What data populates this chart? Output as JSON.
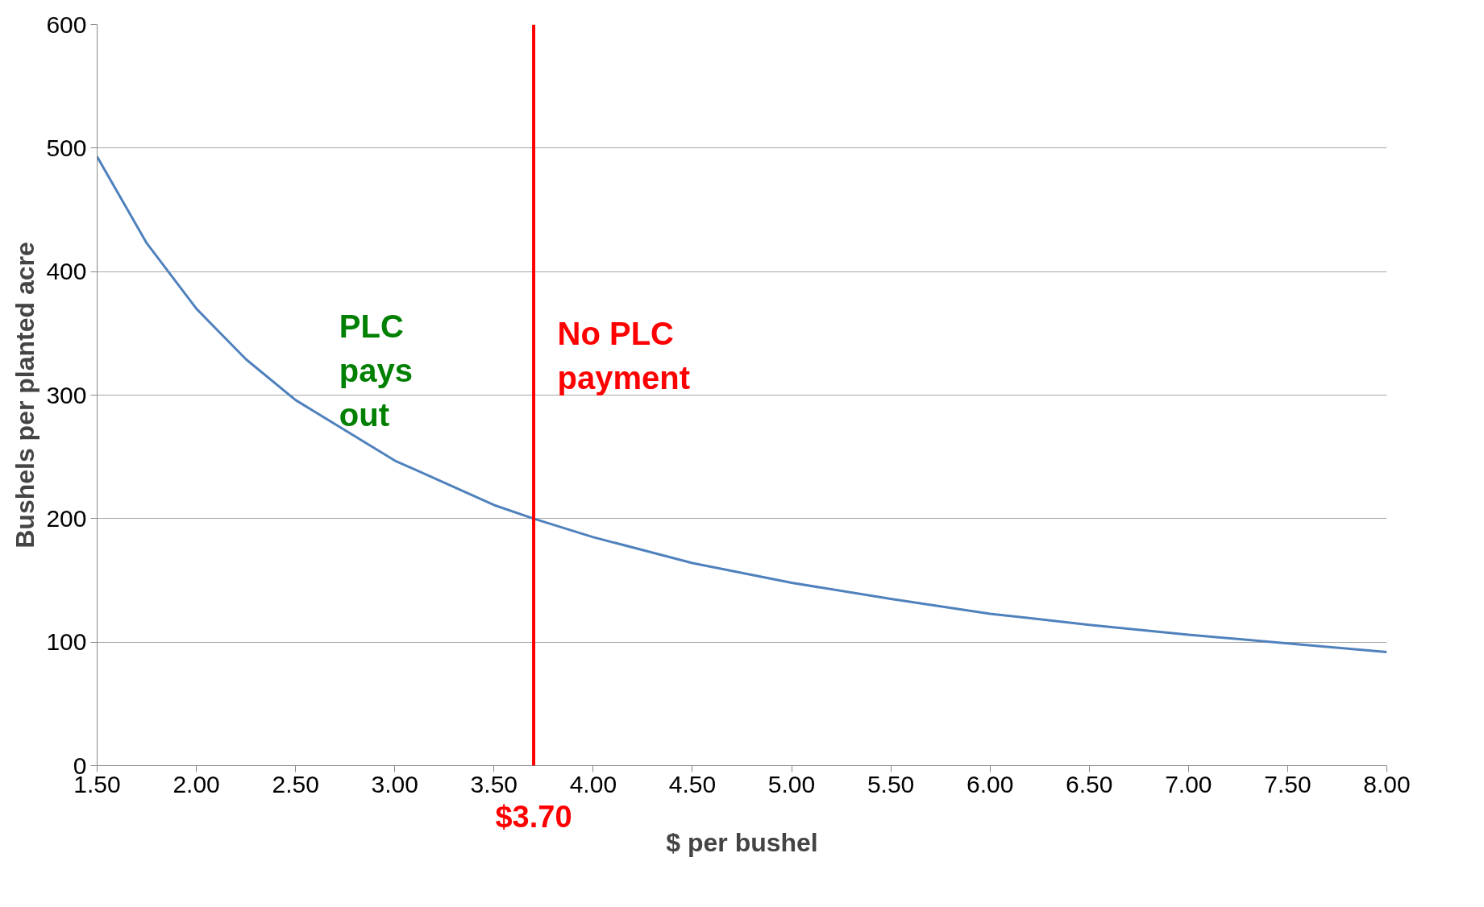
{
  "chart_data": {
    "type": "line",
    "xlabel": "$ per bushel",
    "ylabel": "Bushels per planted acre",
    "x": [
      1.5,
      1.75,
      2.0,
      2.25,
      2.5,
      3.0,
      3.5,
      3.7,
      4.0,
      4.5,
      5.0,
      5.5,
      6.0,
      6.5,
      7.0,
      7.5,
      8.0
    ],
    "series": [
      {
        "color": "#4f81bd",
        "values": [
          493,
          423,
          370,
          329,
          296,
          247,
          211,
          200,
          185,
          164,
          148,
          135,
          123,
          114,
          106,
          99,
          92
        ]
      }
    ],
    "xlim": [
      1.5,
      8.0
    ],
    "ylim": [
      0,
      600
    ],
    "xticks": [
      {
        "value": 1.5,
        "label": "1.50"
      },
      {
        "value": 2.0,
        "label": "2.00"
      },
      {
        "value": 2.5,
        "label": "2.50"
      },
      {
        "value": 3.0,
        "label": "3.00"
      },
      {
        "value": 3.5,
        "label": "3.50"
      },
      {
        "value": 4.0,
        "label": "4.00"
      },
      {
        "value": 4.5,
        "label": "4.50"
      },
      {
        "value": 5.0,
        "label": "5.00"
      },
      {
        "value": 5.5,
        "label": "5.50"
      },
      {
        "value": 6.0,
        "label": "6.00"
      },
      {
        "value": 6.5,
        "label": "6.50"
      },
      {
        "value": 7.0,
        "label": "7.00"
      },
      {
        "value": 7.5,
        "label": "7.50"
      },
      {
        "value": 8.0,
        "label": "8.00"
      }
    ],
    "yticks": [
      0,
      100,
      200,
      300,
      400,
      500,
      600
    ],
    "ref_lines": [
      {
        "axis": "x",
        "value": 3.7,
        "label": "$3.70",
        "color": "#ff0000"
      }
    ],
    "annotations": [
      "PLC\npays\nout",
      "No PLC\npayment"
    ],
    "grid": "y",
    "marker": "none",
    "line_style": "solid"
  }
}
